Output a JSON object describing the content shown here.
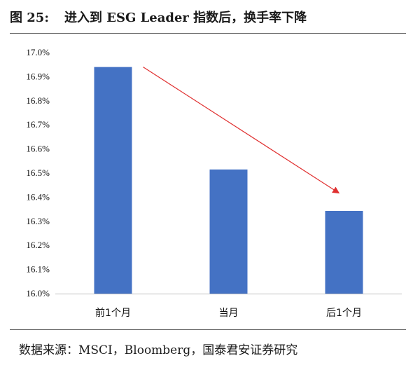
{
  "figure": {
    "number": "图 25:",
    "title": "进入到 ESG Leader 指数后，换手率下降"
  },
  "source": "数据来源：MSCI，Bloomberg，国泰君安证券研究",
  "colors": {
    "bar": "#4472C4",
    "arrow": "#E03030",
    "axis": "#bfbfbf",
    "text": "#111111"
  },
  "chart_data": {
    "type": "bar",
    "categories": [
      "前1个月",
      "当月",
      "后1个月"
    ],
    "values": [
      16.94,
      16.515,
      16.343
    ],
    "ylim": [
      16.0,
      17.0
    ],
    "yticks": [
      "16.0%",
      "16.1%",
      "16.2%",
      "16.3%",
      "16.4%",
      "16.5%",
      "16.6%",
      "16.7%",
      "16.8%",
      "16.9%",
      "17.0%"
    ],
    "grid": false,
    "legend": "none",
    "annotations": [
      {
        "type": "arrow",
        "from_category": "前1个月",
        "to_category": "后1个月",
        "direction": "down"
      }
    ]
  }
}
